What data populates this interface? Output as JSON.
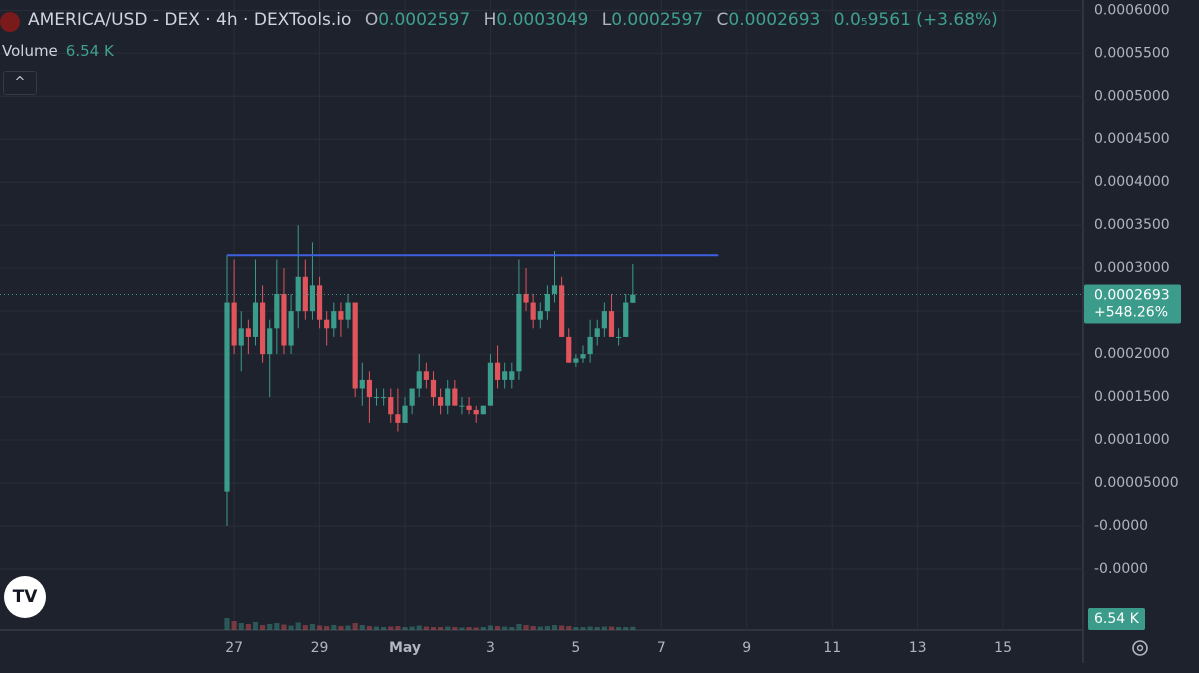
{
  "header": {
    "pair": "AMERICA/USD - DEX · 4h · DEXTools.io",
    "o": "O",
    "h": "H",
    "l": "L",
    "c": "C",
    "change": "0.0₅9561 (+3.68%)",
    "volume_title": "Volume",
    "volume_label": "6.54 K",
    "percent": "+548.26%"
  },
  "chart_data": {
    "type": "candlestick",
    "categories": [
      null,
      "27",
      null,
      null,
      null,
      null,
      null,
      null,
      null,
      null,
      null,
      null,
      null,
      "29",
      null,
      null,
      null,
      null,
      null,
      null,
      null,
      null,
      null,
      null,
      null,
      "May",
      null,
      null,
      null,
      null,
      null,
      null,
      null,
      null,
      null,
      null,
      null,
      "3",
      null,
      null,
      null,
      null,
      null,
      null,
      null,
      null,
      null,
      null,
      null,
      "5",
      null,
      null,
      null,
      null,
      null,
      null,
      null,
      null,
      null,
      null,
      null,
      "7",
      null,
      null,
      null,
      null,
      null,
      null,
      null,
      null,
      null,
      null,
      null,
      "9",
      null,
      null,
      null,
      null,
      null,
      null,
      null,
      null,
      null,
      null,
      null,
      "11",
      null,
      null,
      null,
      null,
      null,
      null,
      null,
      null,
      null,
      null,
      null,
      "13",
      null,
      null,
      null,
      null,
      null,
      null,
      null,
      null,
      null,
      null,
      null,
      "15",
      null,
      null,
      null,
      null,
      null,
      null,
      null,
      null,
      null,
      null
    ],
    "open": [
      4e-05,
      0.00026,
      0.00021,
      0.00023,
      0.00022,
      0.00026,
      0.0002,
      0.00023,
      0.00027,
      0.00021,
      0.00025,
      0.00029,
      0.00025,
      0.00028,
      0.00024,
      0.00023,
      0.00025,
      0.00024,
      0.00026,
      0.00016,
      0.00017,
      0.00015,
      0.00015,
      0.00015,
      0.00013,
      0.00012,
      0.00014,
      0.00016,
      0.00018,
      0.00017,
      0.00015,
      0.00014,
      0.00016,
      0.00014,
      0.00014,
      0.000135,
      0.00013,
      0.00014,
      0.00019,
      0.00017,
      0.00017,
      0.00018,
      0.00027,
      0.00026,
      0.00024,
      0.00025,
      0.00027,
      0.00028,
      0.00022,
      0.00019,
      0.000195,
      0.0002,
      0.00022,
      0.00023,
      0.00025,
      0.00022,
      0.00022,
      0.0002597,
      null,
      null,
      null,
      null,
      null,
      null,
      null,
      null,
      null,
      null,
      null,
      null,
      null,
      null,
      null,
      null,
      null,
      null,
      null,
      null,
      null,
      null,
      null,
      null,
      null,
      null,
      null,
      null,
      null,
      null,
      null,
      null,
      null,
      null,
      null,
      null,
      null,
      null,
      null,
      null,
      null,
      null,
      null,
      null,
      null,
      null,
      null,
      null,
      null,
      null,
      null,
      null,
      null,
      null,
      null,
      null,
      null,
      null,
      null,
      null,
      null,
      null
    ],
    "high": [
      0.000315,
      0.00031,
      0.00025,
      0.00024,
      0.00031,
      0.00028,
      0.00024,
      0.00031,
      0.0003,
      0.00027,
      0.00035,
      0.00031,
      0.00033,
      0.00029,
      0.00025,
      0.00026,
      0.00026,
      0.00027,
      0.00026,
      0.00019,
      0.00018,
      0.00016,
      0.00016,
      0.00016,
      0.00016,
      0.00015,
      0.00016,
      0.0002,
      0.00019,
      0.00018,
      0.00016,
      0.00017,
      0.00017,
      0.00015,
      0.00015,
      0.00014,
      0.00014,
      0.0002,
      0.00021,
      0.00019,
      0.00019,
      0.00031,
      0.0003,
      0.00027,
      0.00026,
      0.00028,
      0.00032,
      0.00029,
      0.00023,
      0.0002,
      0.00021,
      0.00024,
      0.00024,
      0.00026,
      0.00027,
      0.00023,
      0.00027,
      0.0003049,
      null,
      null,
      null,
      null,
      null,
      null,
      null,
      null,
      null,
      null,
      null,
      null,
      null,
      null,
      null,
      null,
      null,
      null,
      null,
      null,
      null,
      null,
      null,
      null,
      null,
      null,
      null,
      null,
      null,
      null,
      null,
      null,
      null,
      null,
      null,
      null,
      null,
      null,
      null,
      null,
      null,
      null,
      null,
      null,
      null,
      null,
      null,
      null,
      null,
      null,
      null,
      null,
      null,
      null,
      null,
      null,
      null,
      null,
      null,
      null,
      null,
      null
    ],
    "low": [
      0.0,
      0.0002,
      0.00018,
      0.0002,
      0.00021,
      0.00019,
      0.00015,
      0.0002,
      0.0002,
      0.0002,
      0.00023,
      0.00024,
      0.00024,
      0.00023,
      0.00021,
      0.00022,
      0.00022,
      0.00023,
      0.00015,
      0.00014,
      0.00012,
      0.00014,
      0.00014,
      0.00012,
      0.00011,
      0.00012,
      0.00013,
      0.00015,
      0.00016,
      0.00014,
      0.00013,
      0.00013,
      0.00014,
      0.00013,
      0.00013,
      0.00012,
      0.00013,
      0.00014,
      0.00016,
      0.00016,
      0.00016,
      0.00017,
      0.00025,
      0.00023,
      0.00023,
      0.00024,
      0.00026,
      0.00022,
      0.00019,
      0.000185,
      0.00019,
      0.00019,
      0.00021,
      0.00022,
      0.00022,
      0.00021,
      0.00022,
      0.0002597,
      null,
      null,
      null,
      null,
      null,
      null,
      null,
      null,
      null,
      null,
      null,
      null,
      null,
      null,
      null,
      null,
      null,
      null,
      null,
      null,
      null,
      null,
      null,
      null,
      null,
      null,
      null,
      null,
      null,
      null,
      null,
      null,
      null,
      null,
      null,
      null,
      null,
      null,
      null,
      null,
      null,
      null,
      null,
      null,
      null,
      null,
      null,
      null,
      null,
      null,
      null,
      null,
      null,
      null,
      null,
      null,
      null,
      null,
      null,
      null,
      null,
      null
    ],
    "close": [
      0.00026,
      0.00021,
      0.00023,
      0.00022,
      0.00026,
      0.0002,
      0.00023,
      0.00027,
      0.00021,
      0.00025,
      0.00029,
      0.00025,
      0.00028,
      0.00024,
      0.00023,
      0.00025,
      0.00024,
      0.00026,
      0.00016,
      0.00017,
      0.00015,
      0.00015,
      0.00015,
      0.00013,
      0.00012,
      0.00014,
      0.00016,
      0.00018,
      0.00017,
      0.00015,
      0.00014,
      0.00016,
      0.00014,
      0.00014,
      0.000135,
      0.00013,
      0.00014,
      0.00019,
      0.00017,
      0.00018,
      0.00018,
      0.00027,
      0.00026,
      0.00024,
      0.00025,
      0.00027,
      0.00028,
      0.00022,
      0.00019,
      0.000195,
      0.0002,
      0.00022,
      0.00023,
      0.00025,
      0.00022,
      0.00022,
      0.00026,
      0.0002693,
      null,
      null,
      null,
      null,
      null,
      null,
      null,
      null,
      null,
      null,
      null,
      null,
      null,
      null,
      null,
      null,
      null,
      null,
      null,
      null,
      null,
      null,
      null,
      null,
      null,
      null,
      null,
      null,
      null,
      null,
      null,
      null,
      null,
      null,
      null,
      null,
      null,
      null,
      null,
      null,
      null,
      null,
      null,
      null,
      null,
      null,
      null,
      null,
      null,
      null,
      null,
      null,
      null,
      null,
      null,
      null,
      null,
      null,
      null,
      null,
      null,
      null
    ],
    "volume": [
      24,
      18,
      14,
      12,
      16,
      10,
      12,
      14,
      11,
      9,
      15,
      10,
      12,
      9,
      8,
      10,
      8,
      9,
      14,
      10,
      8,
      7,
      6,
      7,
      8,
      6,
      7,
      9,
      7,
      6,
      6,
      7,
      6,
      5,
      6,
      5,
      6,
      9,
      8,
      7,
      6,
      12,
      10,
      8,
      7,
      8,
      10,
      9,
      8,
      6,
      6,
      7,
      6,
      7,
      7,
      6,
      6,
      6.54,
      null,
      null,
      null,
      null,
      null,
      null,
      null,
      null,
      null,
      null,
      null,
      null,
      null,
      null,
      null,
      null,
      null,
      null,
      null,
      null,
      null,
      null,
      null,
      null,
      null,
      null,
      null,
      null,
      null,
      null,
      null,
      null,
      null,
      null,
      null,
      null,
      null,
      null,
      null,
      null,
      null,
      null,
      null,
      null,
      null,
      null,
      null,
      null,
      null,
      null,
      null,
      null,
      null,
      null,
      null,
      null,
      null,
      null,
      null,
      null,
      null,
      null
    ],
    "up_color": "#3b9c8b",
    "down_color": "#e0555c",
    "ylim": [
      -0.000121,
      0.000612
    ],
    "yticks": [
      {
        "value": 0.0006,
        "label": "0.0006000"
      },
      {
        "value": 0.00055,
        "label": "0.0005500"
      },
      {
        "value": 0.0005,
        "label": "0.0005000"
      },
      {
        "value": 0.00045,
        "label": "0.0004500"
      },
      {
        "value": 0.0004,
        "label": "0.0004000"
      },
      {
        "value": 0.00035,
        "label": "0.0003500"
      },
      {
        "value": 0.0003,
        "label": "0.0003000"
      },
      {
        "value": 0.00025,
        "label": "0.0002500"
      },
      {
        "value": 0.0002,
        "label": "0.0002000"
      },
      {
        "value": 0.00015,
        "label": "0.0001500"
      },
      {
        "value": 0.0001,
        "label": "0.0001000"
      },
      {
        "value": 5e-05,
        "label": "0.00005000"
      },
      {
        "value": 0,
        "label": "-0.0000"
      },
      {
        "value": -5e-05,
        "label": "-0.0000"
      }
    ],
    "grid": true,
    "trend_line": {
      "value": 0.000315,
      "x": [
        0,
        69
      ],
      "color": "#3f5fe0"
    }
  }
}
